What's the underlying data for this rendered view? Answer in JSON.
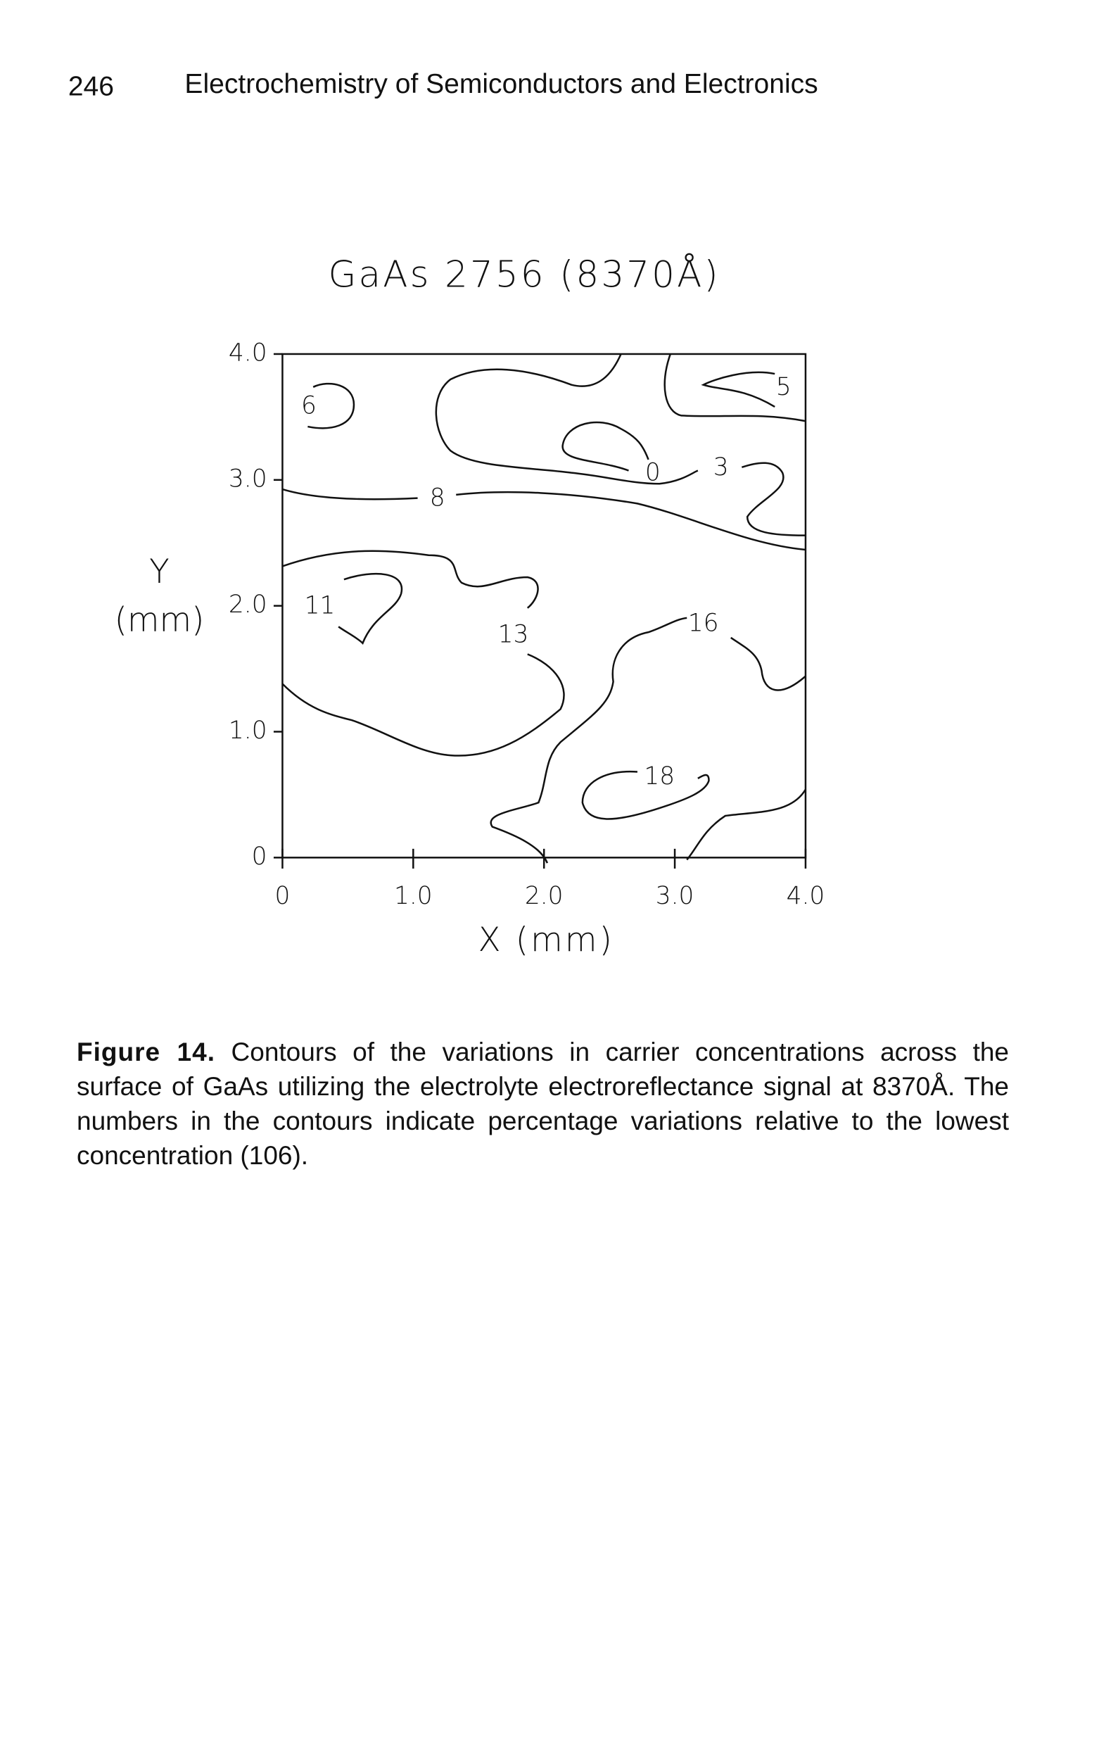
{
  "header": {
    "page_number": "246",
    "running_title": "Electrochemistry of Semiconductors and Electronics"
  },
  "chart_data": {
    "type": "contour",
    "title": "GaAs 2756 (8370Å)",
    "x_label": "X (mm)",
    "y_label_lines": [
      "Y",
      "(mm)"
    ],
    "xlim": [
      0,
      4
    ],
    "ylim": [
      0,
      4
    ],
    "xticks": [
      0,
      {
        "value": 1,
        "label": "1.0"
      },
      {
        "value": 2,
        "label": "2.0"
      },
      {
        "value": 3,
        "label": "3.0"
      },
      {
        "value": 4,
        "label": "4.0"
      }
    ],
    "yticks": [
      0,
      {
        "value": 1,
        "label": "1.0"
      },
      {
        "value": 2,
        "label": "2.0"
      },
      {
        "value": 3,
        "label": "3.0"
      },
      {
        "value": 4,
        "label": "4.0"
      }
    ],
    "contour_levels": [
      6,
      5,
      0,
      3,
      8,
      11,
      13,
      16,
      18
    ],
    "color": "#111111"
  },
  "figure_caption": {
    "label": "Figure 14.",
    "text": "Contours of the variations in carrier concentrations across the surface of GaAs utilizing the electrolyte electroreflectance signal at 8370Å. The numbers in the contours indicate percentage variations relative to the lowest concentration (106)."
  }
}
